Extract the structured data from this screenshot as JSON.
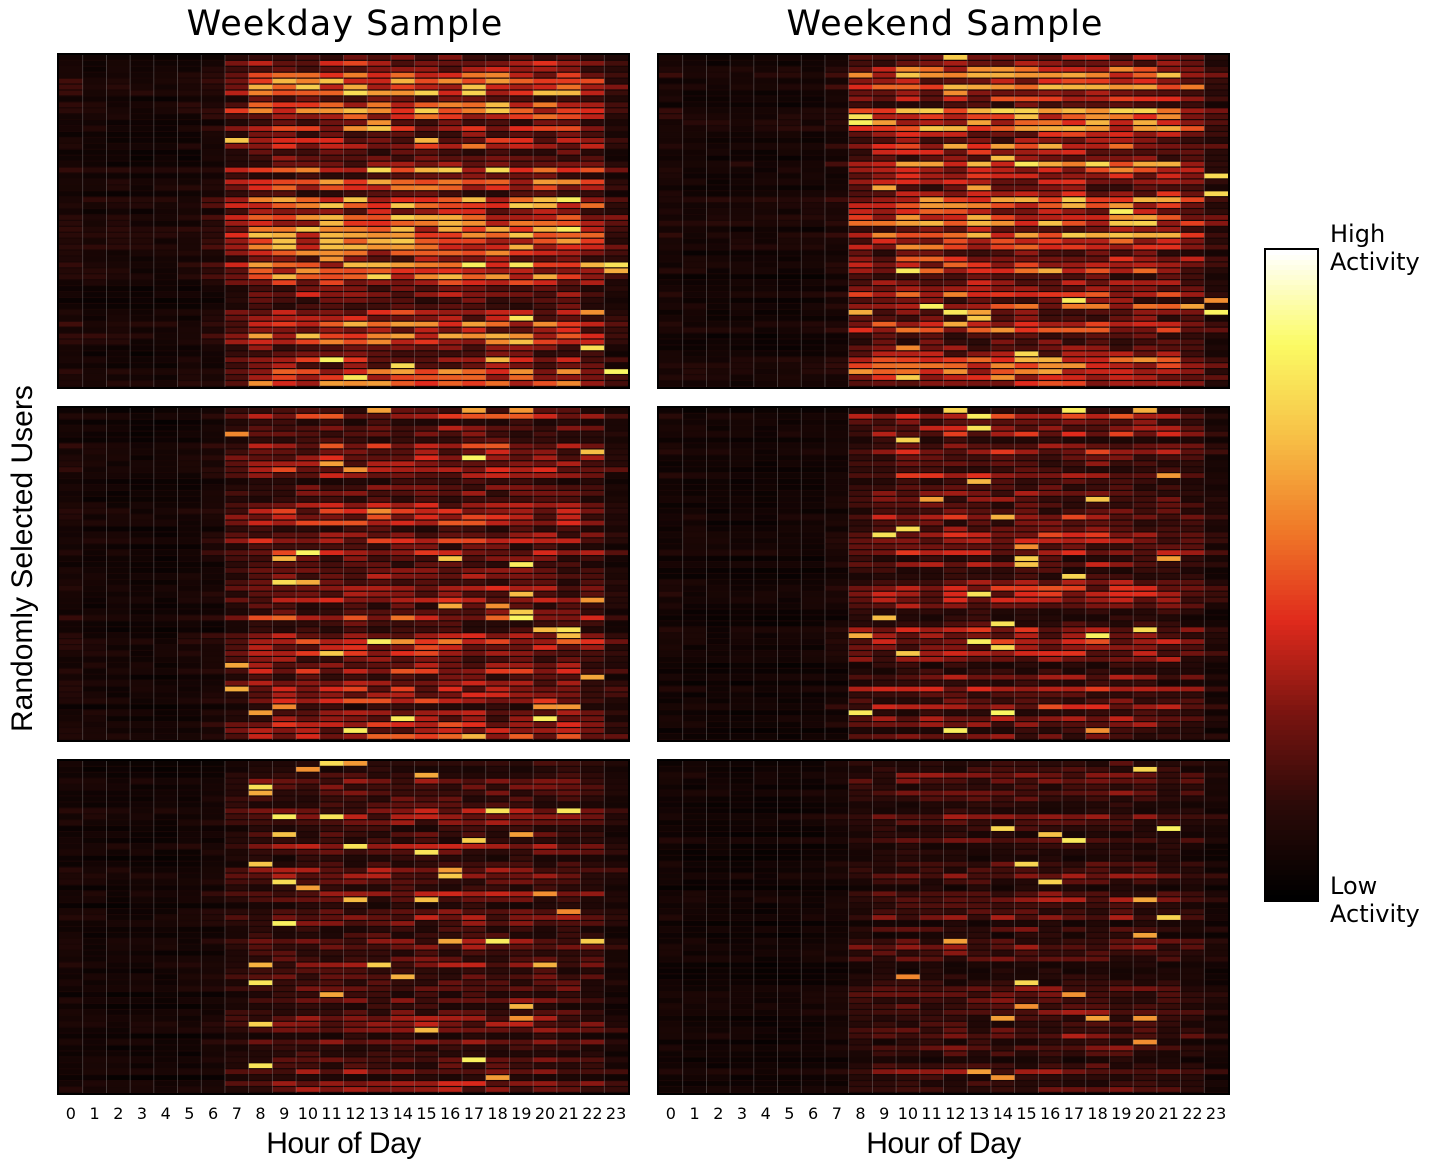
{
  "chart_data": {
    "type": "heatmap",
    "column_titles": [
      "Weekday Sample",
      "Weekend Sample"
    ],
    "ylabel": "Randomly Selected Users",
    "xlabel": "Hour of Day",
    "x_ticks": [
      "0",
      "1",
      "2",
      "3",
      "4",
      "5",
      "6",
      "7",
      "8",
      "9",
      "10",
      "11",
      "12",
      "13",
      "14",
      "15",
      "16",
      "17",
      "18",
      "19",
      "20",
      "21",
      "22",
      "23"
    ],
    "colorbar": {
      "high_label": [
        "High",
        "Activity"
      ],
      "low_label": [
        "Low",
        "Activity"
      ],
      "colormap": [
        "#000000",
        "#2b0a08",
        "#7a1410",
        "#e02a1c",
        "#f07a28",
        "#f7c046",
        "#fbfb64",
        "#ffffff"
      ]
    },
    "grid": true,
    "panels": [
      {
        "column": "Weekday Sample",
        "row": 1,
        "activity_profile": [
          0.14,
          0.12,
          0.11,
          0.1,
          0.1,
          0.12,
          0.16,
          0.34,
          0.52,
          0.55,
          0.55,
          0.56,
          0.57,
          0.56,
          0.55,
          0.56,
          0.56,
          0.56,
          0.57,
          0.55,
          0.54,
          0.52,
          0.42,
          0.22
        ]
      },
      {
        "column": "Weekend Sample",
        "row": 1,
        "activity_profile": [
          0.12,
          0.11,
          0.1,
          0.1,
          0.1,
          0.1,
          0.1,
          0.14,
          0.42,
          0.5,
          0.52,
          0.54,
          0.55,
          0.55,
          0.55,
          0.56,
          0.56,
          0.56,
          0.56,
          0.55,
          0.54,
          0.5,
          0.4,
          0.22
        ]
      },
      {
        "column": "Weekday Sample",
        "row": 2,
        "activity_profile": [
          0.12,
          0.1,
          0.09,
          0.08,
          0.08,
          0.1,
          0.14,
          0.26,
          0.36,
          0.38,
          0.38,
          0.39,
          0.4,
          0.4,
          0.4,
          0.41,
          0.41,
          0.41,
          0.41,
          0.4,
          0.38,
          0.36,
          0.3,
          0.18
        ]
      },
      {
        "column": "Weekend Sample",
        "row": 2,
        "activity_profile": [
          0.1,
          0.09,
          0.08,
          0.08,
          0.08,
          0.08,
          0.08,
          0.12,
          0.28,
          0.32,
          0.34,
          0.35,
          0.36,
          0.36,
          0.36,
          0.37,
          0.37,
          0.37,
          0.37,
          0.36,
          0.34,
          0.32,
          0.26,
          0.16
        ]
      },
      {
        "column": "Weekday Sample",
        "row": 3,
        "activity_profile": [
          0.1,
          0.09,
          0.08,
          0.08,
          0.08,
          0.09,
          0.11,
          0.18,
          0.24,
          0.26,
          0.27,
          0.27,
          0.28,
          0.28,
          0.28,
          0.29,
          0.29,
          0.29,
          0.29,
          0.28,
          0.27,
          0.26,
          0.22,
          0.14
        ]
      },
      {
        "column": "Weekend Sample",
        "row": 3,
        "activity_profile": [
          0.09,
          0.08,
          0.08,
          0.07,
          0.07,
          0.07,
          0.08,
          0.1,
          0.2,
          0.23,
          0.24,
          0.24,
          0.25,
          0.25,
          0.25,
          0.26,
          0.26,
          0.26,
          0.26,
          0.25,
          0.24,
          0.22,
          0.19,
          0.12
        ]
      }
    ]
  }
}
